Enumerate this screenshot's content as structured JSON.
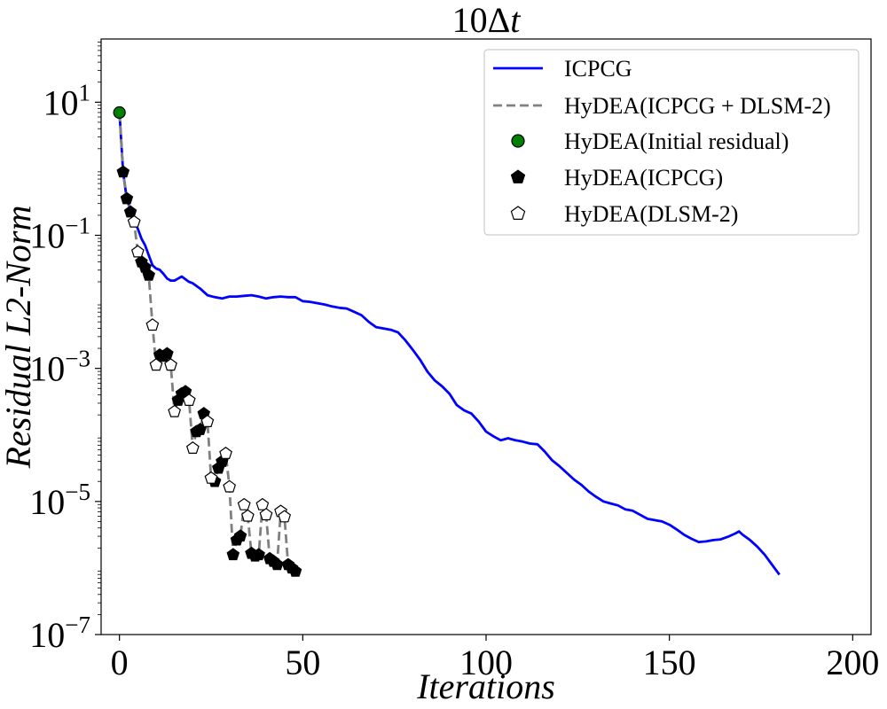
{
  "chart_data": {
    "type": "line",
    "title": "10Δt",
    "xlabel": "Iterations",
    "ylabel": "Residual L2-Norm",
    "yscale": "log",
    "xlim": [
      -5,
      205
    ],
    "ylim_log10": [
      -7,
      1.95
    ],
    "grid": false,
    "legend_position": "top-right",
    "x_ticks": [
      0,
      50,
      100,
      150,
      200
    ],
    "y_ticks_exp": [
      1,
      -1,
      -3,
      -5,
      -7
    ],
    "y_tick_base": "10",
    "colors": {
      "icpcg": "#0000ff",
      "hydea": "#808080",
      "initial": "#008000",
      "icpcg_marker": "#000000",
      "dlsm_marker": "#ffffff"
    },
    "series": [
      {
        "name": "ICPCG",
        "style": "solid",
        "points": [
          [
            0,
            0.845
          ],
          [
            1,
            -0.05
          ],
          [
            2,
            -0.45
          ],
          [
            3,
            -0.62
          ],
          [
            4,
            -0.78
          ],
          [
            5,
            -0.9
          ],
          [
            6,
            -1.05
          ],
          [
            7,
            -1.15
          ],
          [
            8,
            -1.3
          ],
          [
            9,
            -1.45
          ],
          [
            10,
            -1.5
          ],
          [
            11,
            -1.52
          ],
          [
            12,
            -1.58
          ],
          [
            13,
            -1.65
          ],
          [
            14,
            -1.68
          ],
          [
            15,
            -1.68
          ],
          [
            16,
            -1.65
          ],
          [
            17,
            -1.62
          ],
          [
            18,
            -1.66
          ],
          [
            19,
            -1.7
          ],
          [
            20,
            -1.72
          ],
          [
            22,
            -1.8
          ],
          [
            24,
            -1.9
          ],
          [
            26,
            -1.93
          ],
          [
            28,
            -1.95
          ],
          [
            30,
            -1.92
          ],
          [
            32,
            -1.92
          ],
          [
            34,
            -1.91
          ],
          [
            36,
            -1.9
          ],
          [
            38,
            -1.92
          ],
          [
            40,
            -1.95
          ],
          [
            42,
            -1.93
          ],
          [
            44,
            -1.92
          ],
          [
            46,
            -1.93
          ],
          [
            48,
            -1.93
          ],
          [
            50,
            -1.99
          ],
          [
            52,
            -2.0
          ],
          [
            54,
            -2.02
          ],
          [
            56,
            -2.04
          ],
          [
            58,
            -2.07
          ],
          [
            60,
            -2.09
          ],
          [
            62,
            -2.1
          ],
          [
            64,
            -2.15
          ],
          [
            66,
            -2.2
          ],
          [
            68,
            -2.3
          ],
          [
            70,
            -2.38
          ],
          [
            72,
            -2.4
          ],
          [
            74,
            -2.42
          ],
          [
            76,
            -2.46
          ],
          [
            78,
            -2.58
          ],
          [
            80,
            -2.72
          ],
          [
            82,
            -2.87
          ],
          [
            84,
            -3.05
          ],
          [
            86,
            -3.18
          ],
          [
            88,
            -3.27
          ],
          [
            90,
            -3.38
          ],
          [
            92,
            -3.55
          ],
          [
            94,
            -3.63
          ],
          [
            96,
            -3.68
          ],
          [
            98,
            -3.8
          ],
          [
            100,
            -3.95
          ],
          [
            102,
            -4.02
          ],
          [
            104,
            -4.08
          ],
          [
            106,
            -4.05
          ],
          [
            108,
            -4.08
          ],
          [
            110,
            -4.1
          ],
          [
            112,
            -4.13
          ],
          [
            114,
            -4.14
          ],
          [
            116,
            -4.25
          ],
          [
            118,
            -4.38
          ],
          [
            120,
            -4.47
          ],
          [
            122,
            -4.57
          ],
          [
            124,
            -4.67
          ],
          [
            126,
            -4.75
          ],
          [
            128,
            -4.85
          ],
          [
            130,
            -4.93
          ],
          [
            132,
            -5.0
          ],
          [
            134,
            -5.03
          ],
          [
            136,
            -5.06
          ],
          [
            138,
            -5.12
          ],
          [
            140,
            -5.14
          ],
          [
            142,
            -5.2
          ],
          [
            144,
            -5.26
          ],
          [
            146,
            -5.28
          ],
          [
            148,
            -5.3
          ],
          [
            150,
            -5.35
          ],
          [
            152,
            -5.42
          ],
          [
            154,
            -5.5
          ],
          [
            156,
            -5.56
          ],
          [
            158,
            -5.61
          ],
          [
            160,
            -5.6
          ],
          [
            162,
            -5.58
          ],
          [
            164,
            -5.57
          ],
          [
            166,
            -5.53
          ],
          [
            168,
            -5.48
          ],
          [
            169,
            -5.45
          ],
          [
            170,
            -5.5
          ],
          [
            172,
            -5.58
          ],
          [
            174,
            -5.68
          ],
          [
            176,
            -5.8
          ],
          [
            178,
            -5.95
          ],
          [
            180,
            -6.1
          ]
        ]
      },
      {
        "name": "HyDEA(ICPCG + DLSM-2)",
        "style": "dashed",
        "points": [
          [
            0,
            0.845
          ],
          [
            1,
            -0.05
          ],
          [
            2,
            -0.45
          ],
          [
            3,
            -0.65
          ],
          [
            4,
            -0.8
          ],
          [
            5,
            -1.25
          ],
          [
            6,
            -1.4
          ],
          [
            7,
            -1.48
          ],
          [
            8,
            -1.6
          ],
          [
            9,
            -2.35
          ],
          [
            10,
            -2.95
          ],
          [
            11,
            -2.8
          ],
          [
            12,
            -2.82
          ],
          [
            13,
            -2.78
          ],
          [
            14,
            -2.95
          ],
          [
            15,
            -3.65
          ],
          [
            16,
            -3.48
          ],
          [
            17,
            -3.38
          ],
          [
            18,
            -3.35
          ],
          [
            19,
            -3.48
          ],
          [
            20,
            -4.2
          ],
          [
            21,
            -3.95
          ],
          [
            22,
            -3.92
          ],
          [
            23,
            -3.68
          ],
          [
            24,
            -3.8
          ],
          [
            25,
            -4.65
          ],
          [
            26,
            -4.7
          ],
          [
            27,
            -4.5
          ],
          [
            28,
            -4.4
          ],
          [
            29,
            -4.28
          ],
          [
            30,
            -4.78
          ],
          [
            31,
            -5.8
          ],
          [
            32,
            -5.58
          ],
          [
            33,
            -5.52
          ],
          [
            34,
            -5.05
          ],
          [
            35,
            -5.22
          ],
          [
            36,
            -5.78
          ],
          [
            37,
            -5.82
          ],
          [
            38,
            -5.8
          ],
          [
            39,
            -5.05
          ],
          [
            40,
            -5.2
          ],
          [
            41,
            -5.86
          ],
          [
            42,
            -5.9
          ],
          [
            43,
            -5.95
          ],
          [
            44,
            -5.15
          ],
          [
            45,
            -5.23
          ],
          [
            46,
            -5.95
          ],
          [
            47,
            -6.0
          ],
          [
            48,
            -6.05
          ]
        ]
      }
    ],
    "markers": {
      "initial": {
        "label": "HyDEA(Initial residual)",
        "points": [
          [
            0,
            0.845
          ]
        ]
      },
      "icpcg": {
        "label": "HyDEA(ICPCG)",
        "points": [
          [
            1,
            -0.05
          ],
          [
            2,
            -0.45
          ],
          [
            3,
            -0.65
          ],
          [
            6,
            -1.4
          ],
          [
            7,
            -1.48
          ],
          [
            8,
            -1.6
          ],
          [
            11,
            -2.8
          ],
          [
            12,
            -2.82
          ],
          [
            13,
            -2.78
          ],
          [
            16,
            -3.48
          ],
          [
            17,
            -3.38
          ],
          [
            18,
            -3.35
          ],
          [
            21,
            -3.95
          ],
          [
            22,
            -3.92
          ],
          [
            23,
            -3.68
          ],
          [
            26,
            -4.7
          ],
          [
            27,
            -4.5
          ],
          [
            28,
            -4.4
          ],
          [
            31,
            -5.8
          ],
          [
            32,
            -5.58
          ],
          [
            33,
            -5.52
          ],
          [
            36,
            -5.78
          ],
          [
            37,
            -5.82
          ],
          [
            38,
            -5.8
          ],
          [
            41,
            -5.86
          ],
          [
            42,
            -5.9
          ],
          [
            43,
            -5.95
          ],
          [
            46,
            -5.95
          ],
          [
            47,
            -6.0
          ],
          [
            48,
            -6.05
          ]
        ]
      },
      "dlsm": {
        "label": "HyDEA(DLSM-2)",
        "points": [
          [
            4,
            -0.8
          ],
          [
            5,
            -1.25
          ],
          [
            9,
            -2.35
          ],
          [
            10,
            -2.95
          ],
          [
            14,
            -2.95
          ],
          [
            15,
            -3.65
          ],
          [
            19,
            -3.48
          ],
          [
            20,
            -4.2
          ],
          [
            24,
            -3.8
          ],
          [
            25,
            -4.65
          ],
          [
            29,
            -4.28
          ],
          [
            30,
            -4.78
          ],
          [
            34,
            -5.05
          ],
          [
            35,
            -5.22
          ],
          [
            39,
            -5.05
          ],
          [
            40,
            -5.2
          ],
          [
            44,
            -5.15
          ],
          [
            45,
            -5.23
          ]
        ]
      }
    }
  }
}
